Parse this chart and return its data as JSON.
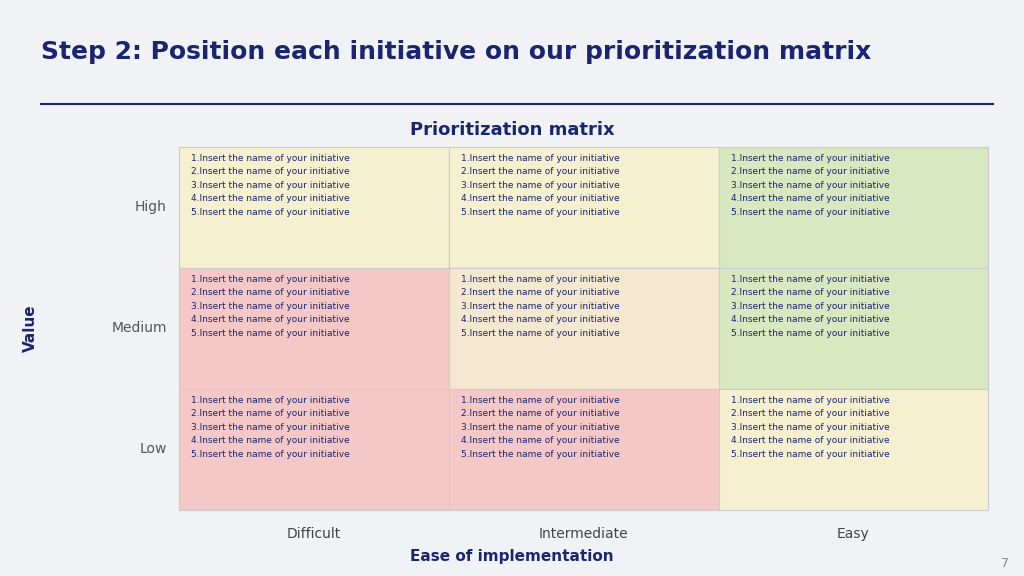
{
  "title": "Step 2: Position each initiative on our prioritization matrix",
  "matrix_title": "Prioritization matrix",
  "background_color": "#f0f2f5",
  "title_color": "#1a2570",
  "title_fontsize": 18,
  "divider_color": "#1a2570",
  "row_labels": [
    "High",
    "Medium",
    "Low"
  ],
  "col_labels": [
    "Difficult",
    "Intermediate",
    "Easy"
  ],
  "value_axis_label": "Value",
  "ease_axis_label": "Ease of implementation",
  "cell_text": "1.Insert the name of your initiative\n2.Insert the name of your initiative\n3.Insert the name of your initiative\n4.Insert the name of your initiative\n5.Insert the name of your initiative",
  "cell_colors": [
    [
      "#f5f0d0",
      "#f5f0d0",
      "#d8e8c0"
    ],
    [
      "#f5c8c8",
      "#f5e8d0",
      "#d8e8c0"
    ],
    [
      "#f5c8c8",
      "#f5c8c8",
      "#f5f0d0"
    ]
  ],
  "text_color": "#1a2570",
  "cell_text_fontsize": 6.5,
  "row_label_color": "#555555",
  "col_label_color": "#444444",
  "row_label_fontsize": 10,
  "col_label_fontsize": 10,
  "axis_label_fontsize": 11,
  "matrix_title_fontsize": 13,
  "page_number": "7"
}
